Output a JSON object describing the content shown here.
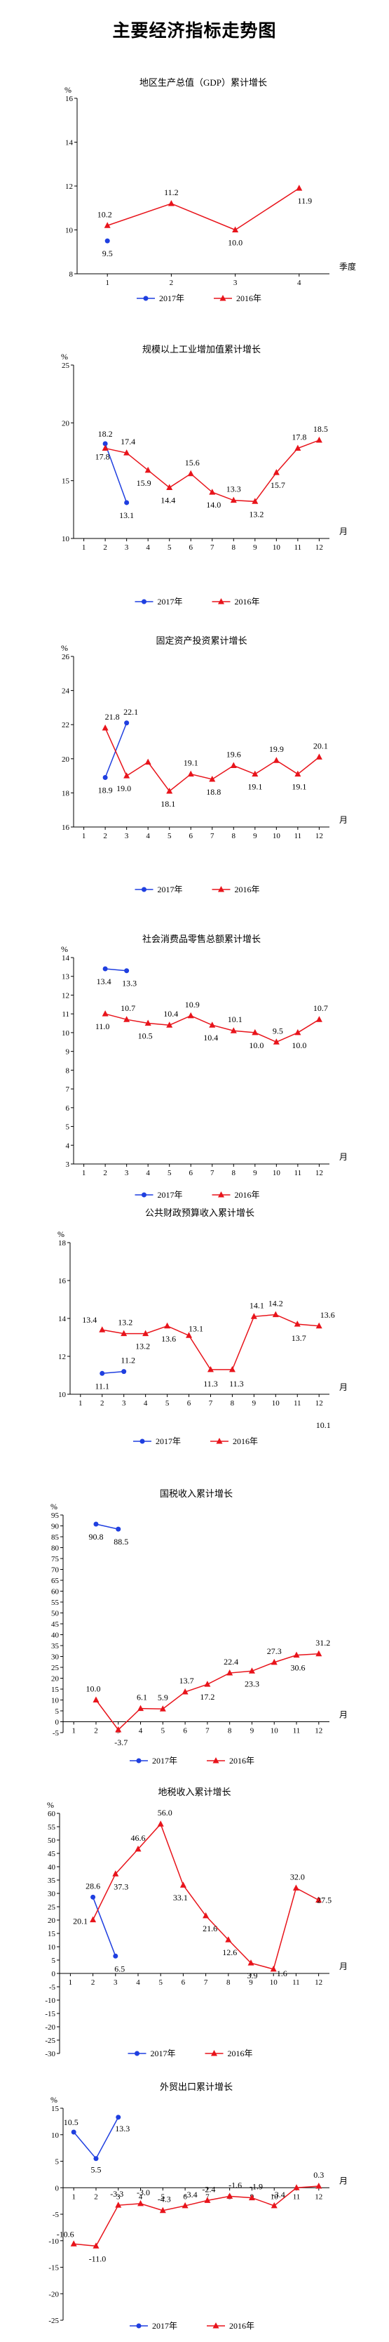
{
  "page": {
    "title": "主要经济指标走势图"
  },
  "chart_data": [
    {
      "type": "line",
      "title": "地区生产总值（GDP）累计增长",
      "ylabel": "%",
      "xlabel": "季度",
      "ylim": [
        8,
        16
      ],
      "yticks": [
        8,
        10,
        12,
        14,
        16
      ],
      "categories": [
        "1",
        "2",
        "3",
        "4"
      ],
      "series": [
        {
          "name": "2017年",
          "color": "#1f3fe0",
          "marker": "circle",
          "values": [
            9.5,
            null,
            null,
            null
          ],
          "labels": [
            "9.5",
            null,
            null,
            null
          ]
        },
        {
          "name": "2016年",
          "color": "#e8141b",
          "marker": "triangle",
          "values": [
            10.2,
            11.2,
            10.0,
            11.9
          ],
          "labels": [
            "10.2",
            "11.2",
            "10.0",
            "11.9"
          ]
        }
      ],
      "legend": "bottom"
    },
    {
      "type": "line",
      "title": "规模以上工业增加值累计增长",
      "ylabel": "%",
      "xlabel": "月",
      "ylim": [
        10,
        25
      ],
      "yticks": [
        10,
        15,
        20,
        25
      ],
      "categories": [
        "1",
        "2",
        "3",
        "4",
        "5",
        "6",
        "7",
        "8",
        "9",
        "10",
        "11",
        "12"
      ],
      "series": [
        {
          "name": "2017年",
          "color": "#1f3fe0",
          "marker": "circle",
          "values": [
            null,
            18.2,
            13.1,
            null,
            null,
            null,
            null,
            null,
            null,
            null,
            null,
            null
          ],
          "labels": [
            null,
            "18.2",
            "13.1",
            null,
            null,
            null,
            null,
            null,
            null,
            null,
            null,
            null
          ]
        },
        {
          "name": "2016年",
          "color": "#e8141b",
          "marker": "triangle",
          "values": [
            null,
            17.8,
            17.4,
            15.9,
            14.4,
            15.6,
            14.0,
            13.3,
            13.2,
            15.7,
            17.8,
            18.5
          ],
          "labels": [
            null,
            "17.8",
            "17.4",
            "15.9",
            "14.4",
            "15.6",
            "14.0",
            "13.3",
            "13.2",
            "15.7",
            "17.8",
            "18.5"
          ]
        }
      ],
      "legend": "bottom"
    },
    {
      "type": "line",
      "title": "固定资产投资累计增长",
      "ylabel": "%",
      "xlabel": "月",
      "ylim": [
        16,
        26
      ],
      "yticks": [
        16,
        18,
        20,
        22,
        24,
        26
      ],
      "categories": [
        "1",
        "2",
        "3",
        "4",
        "5",
        "6",
        "7",
        "8",
        "9",
        "10",
        "11",
        "12"
      ],
      "series": [
        {
          "name": "2017年",
          "color": "#1f3fe0",
          "marker": "circle",
          "values": [
            null,
            18.9,
            22.1,
            null,
            null,
            null,
            null,
            null,
            null,
            null,
            null,
            null
          ],
          "labels": [
            null,
            "18.9",
            "22.1",
            null,
            null,
            null,
            null,
            null,
            null,
            null,
            null,
            null
          ]
        },
        {
          "name": "2016年",
          "color": "#e8141b",
          "marker": "triangle",
          "values": [
            null,
            21.8,
            19.0,
            19.8,
            18.1,
            19.1,
            18.8,
            19.6,
            19.1,
            19.9,
            19.1,
            20.1
          ],
          "labels": [
            null,
            "21.8",
            "19.0",
            null,
            "18.1",
            "19.1",
            "18.8",
            "19.6",
            "19.1",
            "19.9",
            "19.1",
            "20.1"
          ]
        }
      ],
      "legend": "bottom"
    },
    {
      "type": "line",
      "title": "社会消费品零售总额累计增长",
      "ylabel": "%",
      "xlabel": "月",
      "ylim": [
        3,
        14
      ],
      "yticks": [
        3,
        4,
        5,
        6,
        7,
        8,
        9,
        10,
        11,
        12,
        13,
        14
      ],
      "categories": [
        "1",
        "2",
        "3",
        "4",
        "5",
        "6",
        "7",
        "8",
        "9",
        "10",
        "11",
        "12"
      ],
      "series": [
        {
          "name": "2017年",
          "color": "#1f3fe0",
          "marker": "circle",
          "values": [
            null,
            13.4,
            13.3,
            null,
            null,
            null,
            null,
            null,
            null,
            null,
            null,
            null
          ],
          "labels": [
            null,
            "13.4",
            "13.3",
            null,
            null,
            null,
            null,
            null,
            null,
            null,
            null,
            null
          ]
        },
        {
          "name": "2016年",
          "color": "#e8141b",
          "marker": "triangle",
          "values": [
            null,
            11.0,
            10.7,
            10.5,
            10.4,
            10.9,
            10.4,
            10.1,
            10.0,
            9.5,
            10.0,
            10.7
          ],
          "labels": [
            null,
            "11.0",
            "10.7",
            "10.5",
            "10.4",
            "10.9",
            "10.4",
            "10.1",
            "10.0",
            "9.5",
            "10.0",
            "10.7"
          ]
        }
      ],
      "legend": "bottom"
    },
    {
      "type": "line",
      "title": "公共财政预算收入累计增长",
      "ylabel": "%",
      "xlabel": "月",
      "ylim": [
        10,
        18
      ],
      "yticks": [
        10,
        12,
        14,
        16,
        18
      ],
      "categories": [
        "1",
        "2",
        "3",
        "4",
        "5",
        "6",
        "7",
        "8",
        "9",
        "10",
        "11",
        "12"
      ],
      "series": [
        {
          "name": "2017年",
          "color": "#1f3fe0",
          "marker": "circle",
          "values": [
            null,
            11.1,
            11.2,
            null,
            null,
            null,
            null,
            null,
            null,
            null,
            null,
            null
          ],
          "labels": [
            null,
            "11.1",
            "11.2",
            null,
            null,
            null,
            null,
            null,
            null,
            null,
            null,
            null
          ]
        },
        {
          "name": "2016年",
          "color": "#e8141b",
          "marker": "triangle",
          "values": [
            null,
            13.4,
            13.2,
            13.2,
            13.6,
            13.1,
            11.3,
            11.3,
            14.1,
            14.2,
            13.7,
            13.6
          ],
          "labels": [
            null,
            "13.4",
            "13.2",
            "13.2",
            "13.6",
            "13.1",
            "11.3",
            "11.3",
            "14.1",
            "14.2",
            "13.7",
            "13.6"
          ]
        }
      ],
      "extra_labels": [
        {
          "x": "12",
          "text": "10.1"
        }
      ],
      "legend": "bottom"
    },
    {
      "type": "line",
      "title": "国税收入累计增长",
      "ylabel": "%",
      "xlabel": "月",
      "ylim": [
        -5,
        95
      ],
      "yticks": [
        -5,
        0,
        5,
        10,
        15,
        20,
        25,
        30,
        35,
        40,
        45,
        50,
        55,
        60,
        65,
        70,
        75,
        80,
        85,
        90,
        95
      ],
      "categories": [
        "1",
        "2",
        "3",
        "4",
        "5",
        "6",
        "7",
        "8",
        "9",
        "10",
        "11",
        "12"
      ],
      "series": [
        {
          "name": "2017年",
          "color": "#1f3fe0",
          "marker": "circle",
          "values": [
            null,
            90.8,
            88.5,
            null,
            null,
            null,
            null,
            null,
            null,
            null,
            null,
            null
          ],
          "labels": [
            null,
            "90.8",
            "88.5",
            null,
            null,
            null,
            null,
            null,
            null,
            null,
            null,
            null
          ]
        },
        {
          "name": "2016年",
          "color": "#e8141b",
          "marker": "triangle",
          "values": [
            null,
            10.0,
            -3.7,
            6.1,
            5.9,
            13.7,
            17.2,
            22.4,
            23.3,
            27.3,
            30.6,
            31.2
          ],
          "labels": [
            null,
            "10.0",
            "-3.7",
            "6.1",
            "5.9",
            "13.7",
            "17.2",
            "22.4",
            "23.3",
            "27.3",
            "30.6",
            "31.2"
          ]
        }
      ],
      "legend": "bottom"
    },
    {
      "type": "line",
      "title": "地税收入累计增长",
      "ylabel": "%",
      "xlabel": "月",
      "ylim": [
        -30,
        60
      ],
      "yticks": [
        -30,
        -25,
        -20,
        -15,
        -10,
        -5,
        0,
        5,
        10,
        15,
        20,
        25,
        30,
        35,
        40,
        45,
        50,
        55,
        60
      ],
      "categories": [
        "1",
        "2",
        "3",
        "4",
        "5",
        "6",
        "7",
        "8",
        "9",
        "10",
        "11",
        "12"
      ],
      "series": [
        {
          "name": "2017年",
          "color": "#1f3fe0",
          "marker": "circle",
          "values": [
            null,
            28.6,
            6.5,
            null,
            null,
            null,
            null,
            null,
            null,
            null,
            null,
            null
          ],
          "labels": [
            null,
            "28.6",
            "6.5",
            null,
            null,
            null,
            null,
            null,
            null,
            null,
            null,
            null
          ]
        },
        {
          "name": "2016年",
          "color": "#e8141b",
          "marker": "triangle",
          "values": [
            null,
            20.1,
            37.3,
            46.6,
            56.0,
            33.1,
            21.6,
            12.6,
            3.9,
            1.6,
            32.0,
            27.5
          ],
          "labels": [
            null,
            "20.1",
            "37.3",
            "46.6",
            "56.0",
            "33.1",
            "21.6",
            "12.6",
            "3.9",
            "1.6",
            "32.0",
            "27.5"
          ]
        }
      ],
      "legend": "bottom"
    },
    {
      "type": "line",
      "title": "外贸出口累计增长",
      "ylabel": "%",
      "xlabel": "月",
      "ylim": [
        -25,
        15
      ],
      "yticks": [
        -25,
        -20,
        -15,
        -10,
        -5,
        0,
        5,
        10,
        15
      ],
      "categories": [
        "1",
        "2",
        "3",
        "4",
        "5",
        "6",
        "7",
        "8",
        "9",
        "10",
        "11",
        "12"
      ],
      "series": [
        {
          "name": "2017年",
          "color": "#1f3fe0",
          "marker": "circle",
          "values": [
            10.5,
            5.5,
            13.3,
            null,
            null,
            null,
            null,
            null,
            null,
            null,
            null,
            null
          ],
          "labels": [
            "10.5",
            "5.5",
            "13.3",
            null,
            null,
            null,
            null,
            null,
            null,
            null,
            null,
            null
          ]
        },
        {
          "name": "2016年",
          "color": "#e8141b",
          "marker": "triangle",
          "values": [
            -10.6,
            -11.0,
            -3.3,
            -3.0,
            -4.3,
            -3.4,
            -2.4,
            -1.6,
            -1.9,
            -3.4,
            0.0,
            0.3
          ],
          "labels": [
            "-10.6",
            "-11.0",
            "-3.3",
            "-3.0",
            "-4.3",
            "-3.4",
            "-2.4",
            "-1.6",
            "-1.9",
            "-3.4",
            null,
            "0.3"
          ]
        }
      ],
      "legend": "bottom"
    }
  ]
}
